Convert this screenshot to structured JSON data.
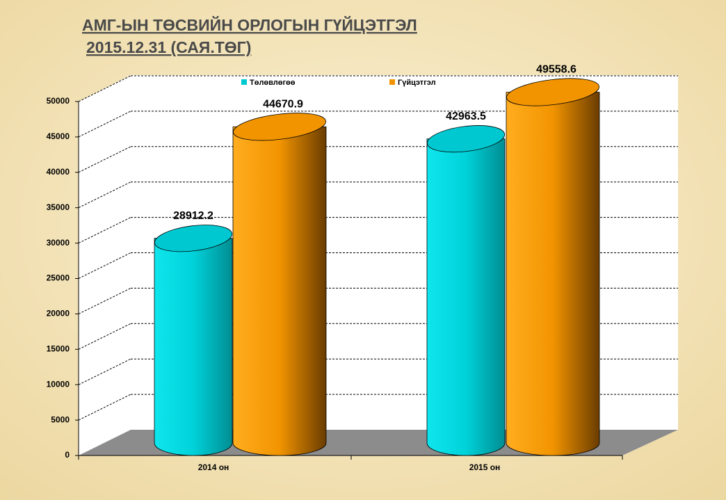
{
  "chart_data": {
    "type": "bar3d",
    "title": "АМГ-ЫН ТӨСВИЙН ОРЛОГЫН ГҮЙЦЭТГЭЛ",
    "subtitle": "2015.12.31 (САЯ.ТӨГ)",
    "categories": [
      "2014 он",
      "2015 он"
    ],
    "series": [
      {
        "name": "Төлөвлөгөө",
        "color": "#00c8d0",
        "values": [
          28912.2,
          42963.5
        ]
      },
      {
        "name": "Гүйцэтгэл",
        "color": "#f29400",
        "values": [
          44670.9,
          49558.6
        ]
      }
    ],
    "ylim": [
      0,
      50000
    ],
    "yticks": [
      0,
      5000,
      10000,
      15000,
      20000,
      25000,
      30000,
      35000,
      40000,
      45000,
      50000
    ],
    "grid": true,
    "legend": "top"
  }
}
